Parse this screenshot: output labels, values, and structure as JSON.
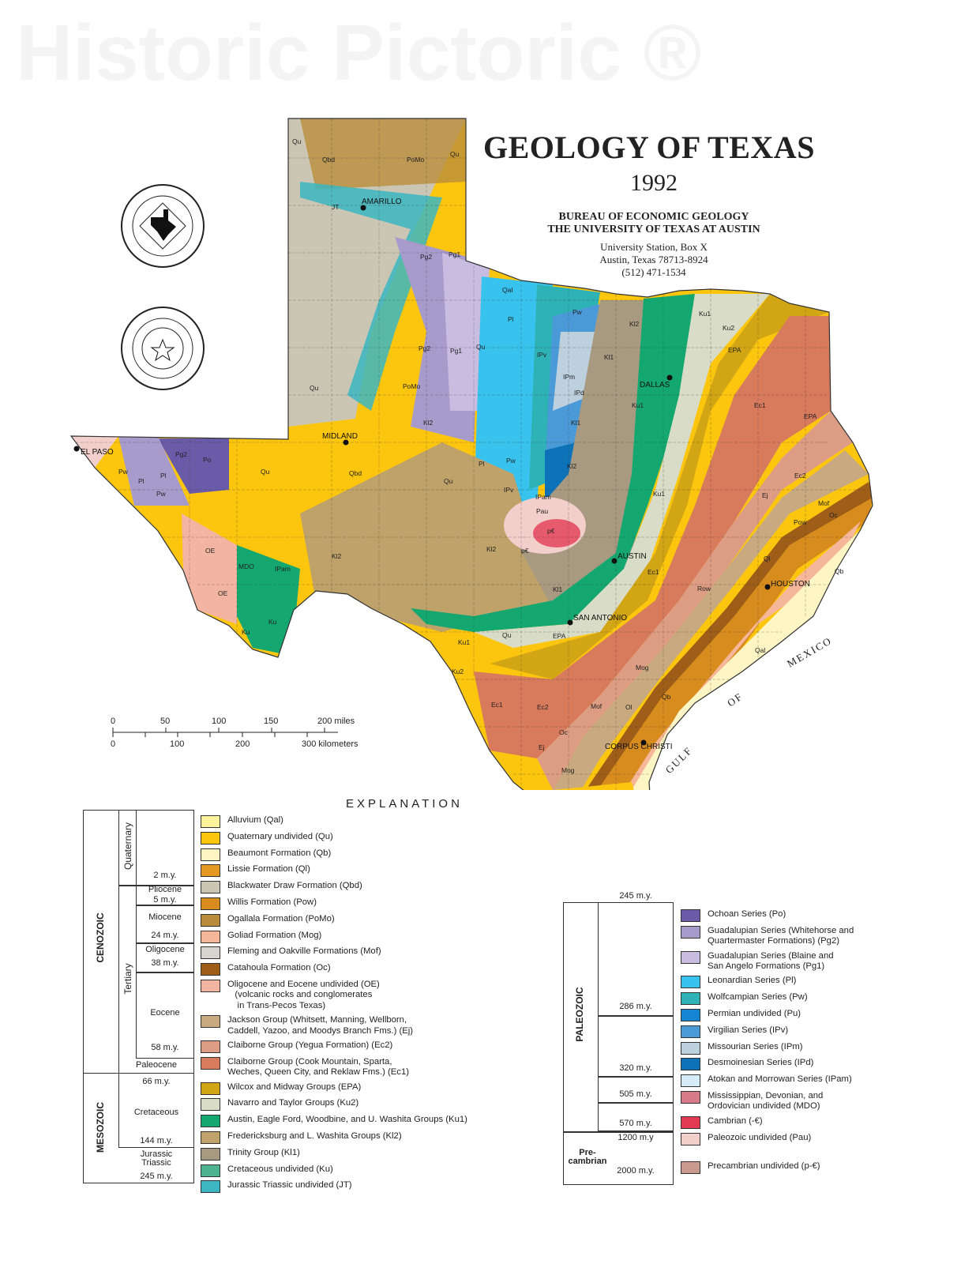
{
  "header": {
    "title": "GEOLOGY OF TEXAS",
    "year": "1992",
    "publisher": "BUREAU OF ECONOMIC GEOLOGY",
    "institution": "THE UNIVERSITY OF TEXAS AT AUSTIN",
    "address_line1": "University Station, Box X",
    "address_line2": "Austin, Texas  78713-8924",
    "phone": "(512) 471-1534"
  },
  "seals": {
    "bureau_seal_text": "BUREAU OF ECONOMIC GEOLOGY",
    "university_seal_text": "THE UNIVERSITY OF TEXAS AT AUSTIN"
  },
  "watermark": "Historic Pictoric ®",
  "map": {
    "cities": [
      {
        "name": "AMARILLO"
      },
      {
        "name": "MIDLAND"
      },
      {
        "name": "EL PASO"
      },
      {
        "name": "DALLAS"
      },
      {
        "name": "AUSTIN"
      },
      {
        "name": "SAN ANTONIO"
      },
      {
        "name": "HOUSTON"
      },
      {
        "name": "CORPUS CHRISTI"
      }
    ],
    "water_labels": [
      "GULF",
      "OF",
      "MEXICO"
    ],
    "unit_labels": [
      "Qu",
      "Qbd",
      "PoMo",
      "Qu",
      "JT",
      "Pg2",
      "Pg1",
      "Qal",
      "Pl",
      "Pw",
      "Kl2",
      "Ku1",
      "Ku2",
      "EPA",
      "Pg2",
      "Pg1",
      "Qu",
      "IPv",
      "IPm",
      "Kl1",
      "IPd",
      "Ec1",
      "EPA",
      "Qu",
      "PoMo",
      "Kl2",
      "Kl1",
      "Ku1",
      "Pg2",
      "Po",
      "Pl",
      "Pw",
      "Qbd",
      "Pl",
      "Pw",
      "Qu",
      "IPv",
      "IPam",
      "Pau",
      "p€",
      "Kl2",
      "Ec2",
      "Ej",
      "Mof",
      "Oc",
      "Pow",
      "Kl2",
      "Kl2",
      "Ku1",
      "Ec1",
      "Ql",
      "Qb",
      "MDO",
      "IPam",
      "OE",
      "Ku",
      "Kl1",
      "Row",
      "Qal",
      "Qu",
      "EPA",
      "Ku1",
      "Ku2",
      "Mog",
      "Ec1",
      "Ec2",
      "Mof",
      "Ol",
      "Qb",
      "Ej",
      "Oc",
      "Mog",
      "Qu",
      "Mog",
      "Qb",
      "p€",
      "Pl",
      "Pw",
      "Qu",
      "OE",
      "Ku"
    ]
  },
  "scale_bar": {
    "miles_ticks": [
      "0",
      "50",
      "100",
      "150",
      "200 miles"
    ],
    "km_ticks": [
      "0",
      "100",
      "200",
      "300 kilometers"
    ]
  },
  "legend": {
    "title": "EXPLANATION",
    "left_units": [
      {
        "label": "Alluvium (Qal)",
        "color": "#fdf39a"
      },
      {
        "label": "Quaternary undivided (Qu)",
        "color": "#fcc60f"
      },
      {
        "label": "Beaumont Formation (Qb)",
        "color": "#fdf6c4"
      },
      {
        "label": "Lissie Formation (Ql)",
        "color": "#e49a22"
      },
      {
        "label": "Blackwater Draw Formation (Qbd)",
        "color": "#cbc6b4"
      },
      {
        "label": "Willis Formation (Pow)",
        "color": "#d88c1e"
      },
      {
        "label": "Ogallala Formation (PoMo)",
        "color": "#b98d3c"
      },
      {
        "label": "Goliad Formation (Mog)",
        "color": "#f6b69a"
      },
      {
        "label": "Fleming and Oakville Formations (Mof)",
        "color": "#d7d4cf"
      },
      {
        "label": "Catahoula Formation (Oc)",
        "color": "#9e5e18"
      },
      {
        "label": "Oligocene and Eocene undivided (OE)\n   (volcanic rocks and conglomerates\n    in Trans-Pecos Texas)",
        "color": "#f3b5a2"
      },
      {
        "label": "Jackson Group (Whitsett, Manning, Wellborn,\nCaddell, Yazoo, and Moodys Branch Fms.) (Ej)",
        "color": "#c9aa80"
      },
      {
        "label": "Claiborne Group (Yegua Formation) (Ec2)",
        "color": "#dd9c84"
      },
      {
        "label": "Claiborne Group (Cook Mountain, Sparta,\nWeches, Queen City, and Reklaw Fms.) (Ec1)",
        "color": "#d87a5c"
      },
      {
        "label": "Wilcox and Midway Groups (EPA)",
        "color": "#d2a514"
      },
      {
        "label": "Navarro and Taylor Groups (Ku2)",
        "color": "#d9dcc6"
      },
      {
        "label": "Austin, Eagle Ford, Woodbine, and U. Washita Groups (Ku1)",
        "color": "#14a870"
      },
      {
        "label": "Fredericksburg and L. Washita Groups (Kl2)",
        "color": "#bfa26a"
      },
      {
        "label": "Trinity Group (Kl1)",
        "color": "#a89a80"
      },
      {
        "label": "Cretaceous undivided (Ku)",
        "color": "#4db391"
      },
      {
        "label": "Jurassic Triassic undivided (JT)",
        "color": "#3bb6c2"
      }
    ],
    "right_units": [
      {
        "label": "Ochoan Series (Po)",
        "color": "#6a5ba8"
      },
      {
        "label": "Guadalupian Series (Whitehorse and\nQuartermaster Formations) (Pg2)",
        "color": "#a79bcc"
      },
      {
        "label": "Guadalupian Series (Blaine and\nSan Angelo Formations (Pg1)",
        "color": "#c8bde0"
      },
      {
        "label": "Leonardian Series (Pl)",
        "color": "#38c3ee"
      },
      {
        "label": "Wolfcampian Series (Pw)",
        "color": "#2fb2b6"
      },
      {
        "label": "Permian undivided (Pu)",
        "color": "#1585d3"
      },
      {
        "label": "Virgilian Series (IPv)",
        "color": "#4a9ad8"
      },
      {
        "label": "Missourian Series (IPm)",
        "color": "#bcd0de"
      },
      {
        "label": "Desmoinesian Series (IPd)",
        "color": "#0d72b8"
      },
      {
        "label": "Atokan and Morrowan Series (IPam)",
        "color": "#d3ecf8"
      },
      {
        "label": "Mississippian, Devonian, and\nOrdovician undivided (MDO)",
        "color": "#d77b8b"
      },
      {
        "label": "Cambrian (-€)",
        "color": "#e43b55"
      },
      {
        "label": "Paleozoic undivided (Pau)",
        "color": "#f3cfcc"
      },
      {
        "label": "Precambrian undivided (p-€)",
        "color": "#c99a8e"
      }
    ],
    "timescale_left": {
      "eras": [
        "CENOZOIC",
        "MESOZOIC"
      ],
      "periods": [
        "Quaternary",
        "Tertiary"
      ],
      "epochs": [
        "Pliocene",
        "Miocene",
        "Oligocene",
        "Eocene",
        "Paleocene",
        "Cretaceous",
        "Jurassic\nTriassic"
      ],
      "ages": [
        "2 m.y.",
        "5 m.y.",
        "24 m.y.",
        "38 m.y.",
        "58 m.y.",
        "66 m.y.",
        "144 m.y.",
        "245 m.y."
      ]
    },
    "timescale_right": {
      "eras": [
        "PALEOZOIC",
        "Pre-\ncambrian"
      ],
      "ages": [
        "245 m.y.",
        "286 m.y.",
        "320 m.y.",
        "505 m.y.",
        "570 m.y.",
        "1200 m.y",
        "2000 m.y."
      ]
    }
  }
}
